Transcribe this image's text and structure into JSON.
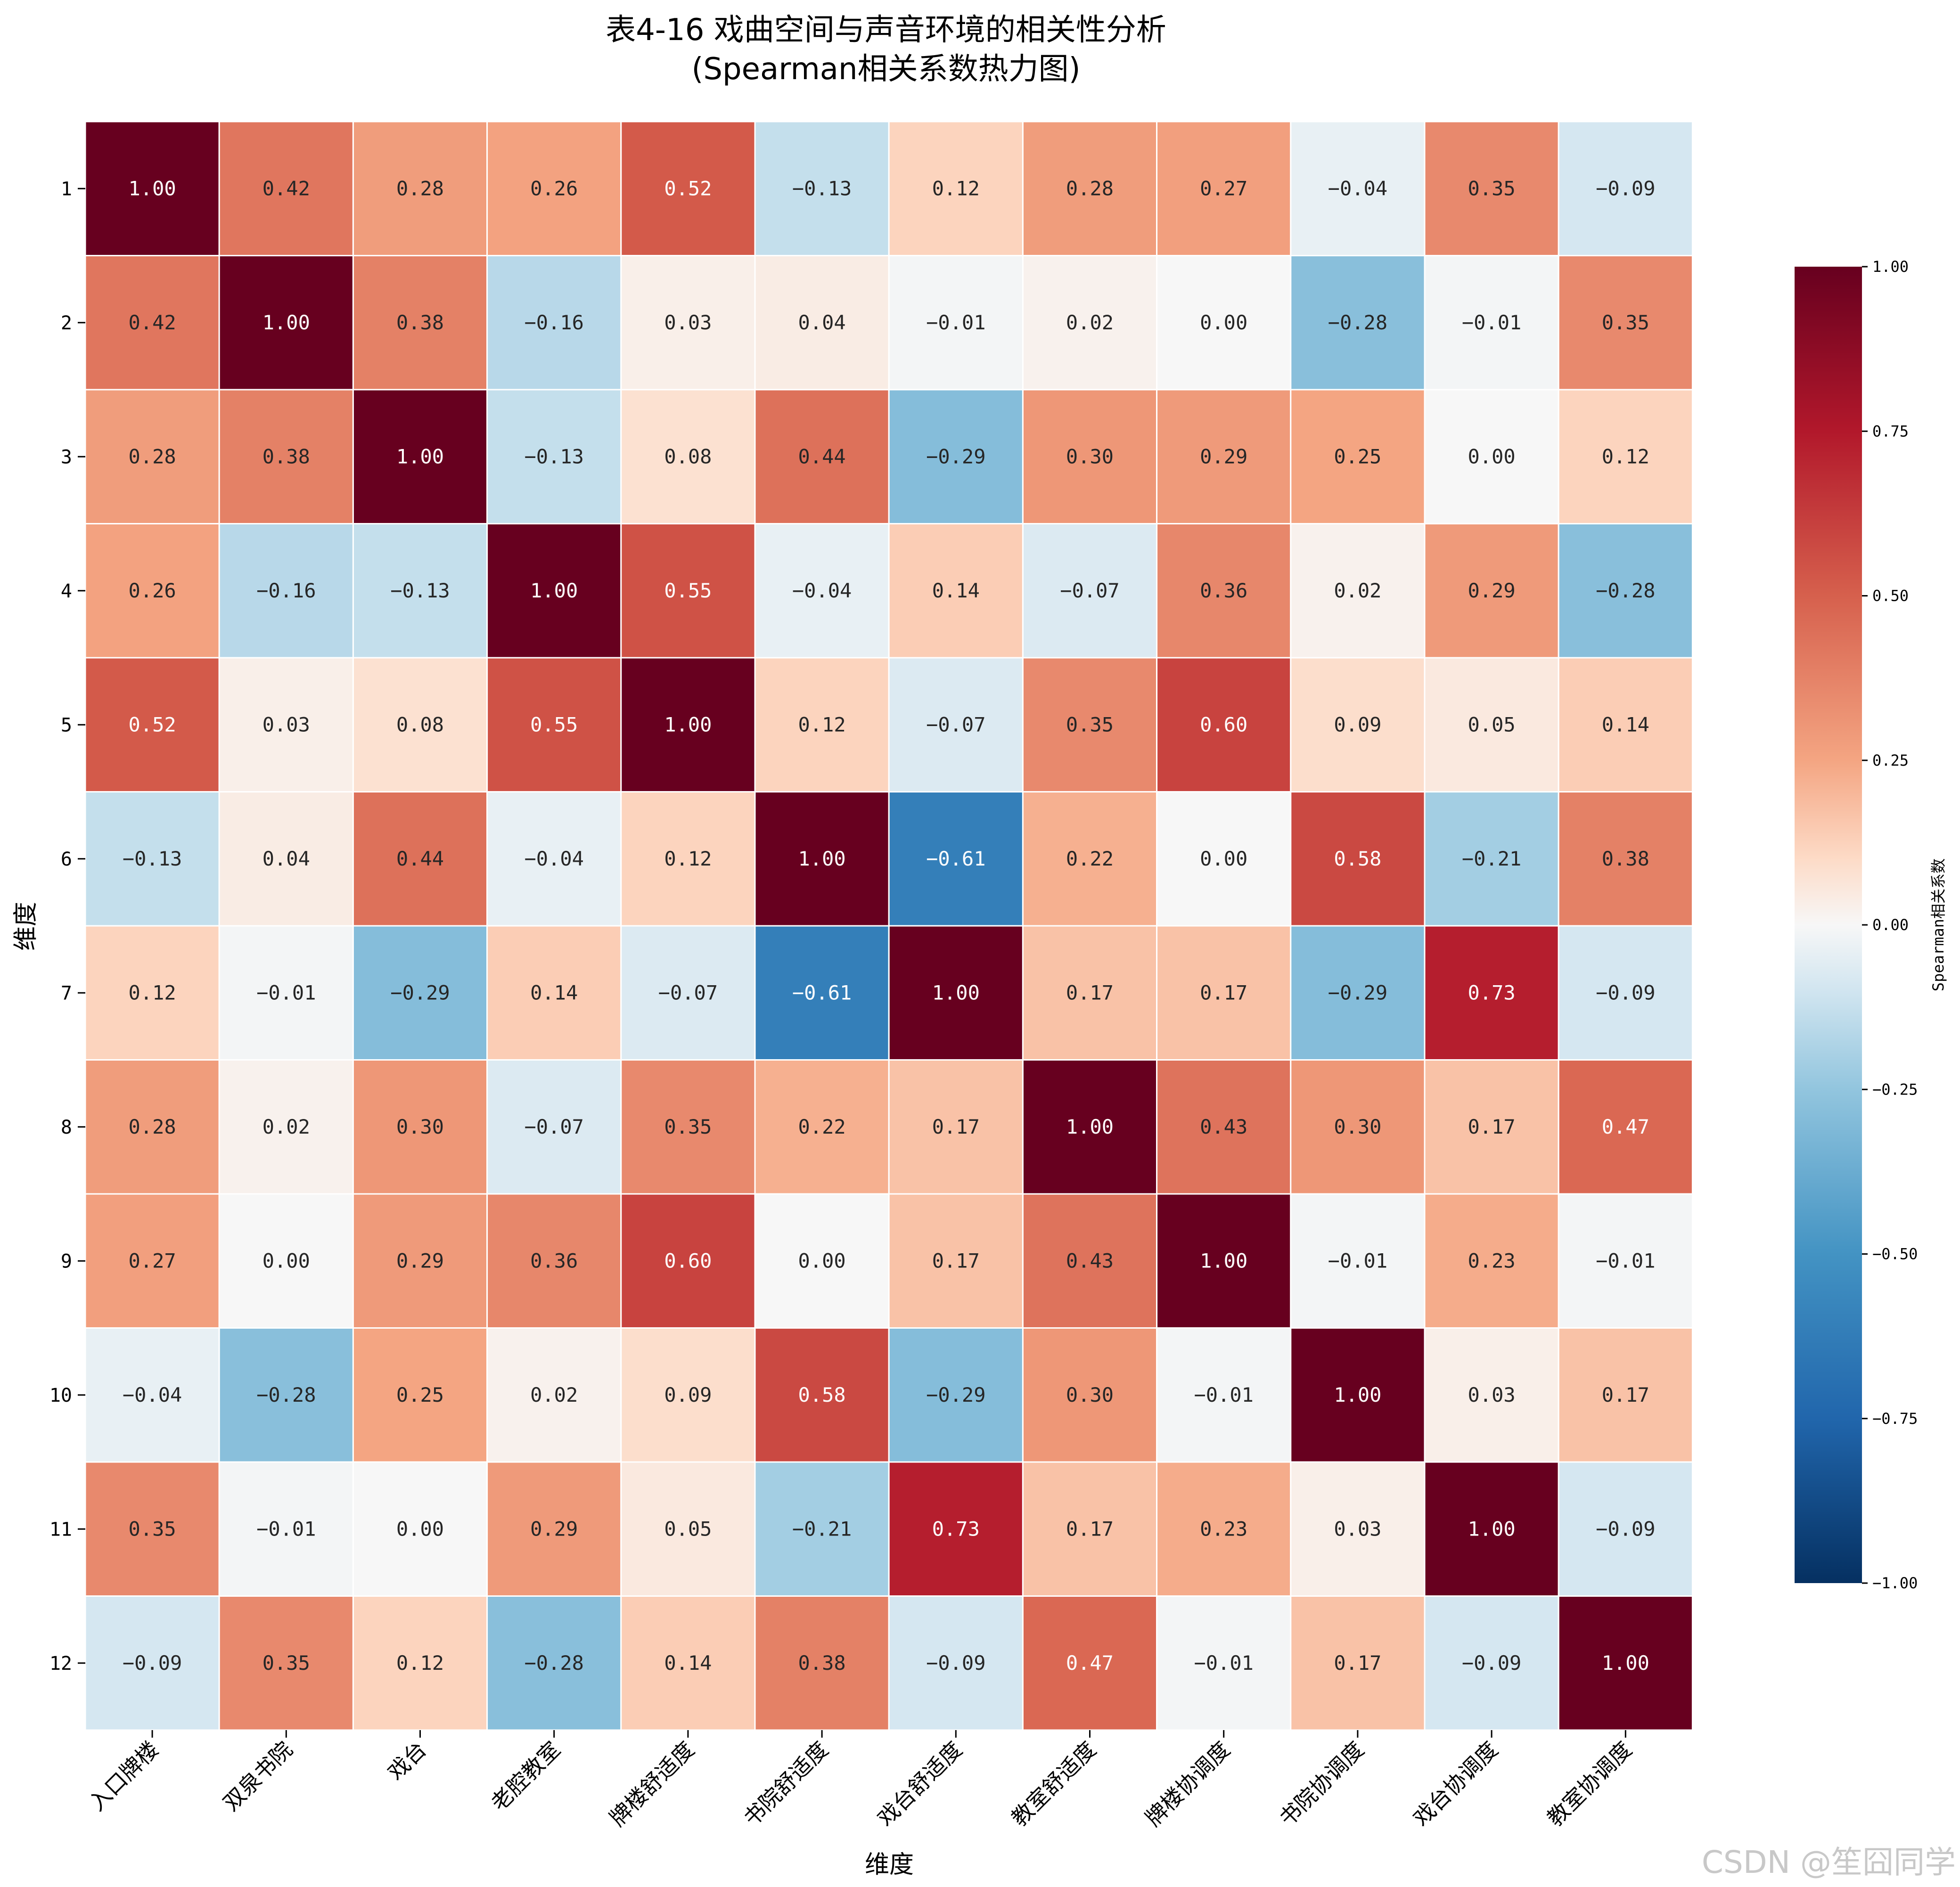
{
  "chart_data": {
    "type": "heatmap",
    "title_lines": [
      "表4-16 戏曲空间与声音环境的相关性分析",
      "(Spearman相关系数热力图)"
    ],
    "xlabel": "维度",
    "ylabel": "维度",
    "x_categories": [
      "入口牌楼",
      "双泉书院",
      "戏台",
      "老腔教室",
      "牌楼舒适度",
      "书院舒适度",
      "戏台舒适度",
      "教室舒适度",
      "牌楼协调度",
      "书院协调度",
      "戏台协调度",
      "教室协调度"
    ],
    "y_categories": [
      "1",
      "2",
      "3",
      "4",
      "5",
      "6",
      "7",
      "8",
      "9",
      "10",
      "11",
      "12"
    ],
    "values": [
      [
        1.0,
        0.42,
        0.28,
        0.26,
        0.52,
        -0.13,
        0.12,
        0.28,
        0.27,
        -0.04,
        0.35,
        -0.09
      ],
      [
        0.42,
        1.0,
        0.38,
        -0.16,
        0.03,
        0.04,
        -0.01,
        0.02,
        0.0,
        -0.28,
        -0.01,
        0.35
      ],
      [
        0.28,
        0.38,
        1.0,
        -0.13,
        0.08,
        0.44,
        -0.29,
        0.3,
        0.29,
        0.25,
        0.0,
        0.12
      ],
      [
        0.26,
        -0.16,
        -0.13,
        1.0,
        0.55,
        -0.04,
        0.14,
        -0.07,
        0.36,
        0.02,
        0.29,
        -0.28
      ],
      [
        0.52,
        0.03,
        0.08,
        0.55,
        1.0,
        0.12,
        -0.07,
        0.35,
        0.6,
        0.09,
        0.05,
        0.14
      ],
      [
        -0.13,
        0.04,
        0.44,
        -0.04,
        0.12,
        1.0,
        -0.61,
        0.22,
        0.0,
        0.58,
        -0.21,
        0.38
      ],
      [
        0.12,
        -0.01,
        -0.29,
        0.14,
        -0.07,
        -0.61,
        1.0,
        0.17,
        0.17,
        -0.29,
        0.73,
        -0.09
      ],
      [
        0.28,
        0.02,
        0.3,
        -0.07,
        0.35,
        0.22,
        0.17,
        1.0,
        0.43,
        0.3,
        0.17,
        0.47
      ],
      [
        0.27,
        0.0,
        0.29,
        0.36,
        0.6,
        0.0,
        0.17,
        0.43,
        1.0,
        -0.01,
        0.23,
        -0.01
      ],
      [
        -0.04,
        -0.28,
        0.25,
        0.02,
        0.09,
        0.58,
        -0.29,
        0.3,
        -0.01,
        1.0,
        0.03,
        0.17
      ],
      [
        0.35,
        -0.01,
        0.0,
        0.29,
        0.05,
        -0.21,
        0.73,
        0.17,
        0.23,
        0.03,
        1.0,
        -0.09
      ],
      [
        -0.09,
        0.35,
        0.12,
        -0.28,
        0.14,
        0.38,
        -0.09,
        0.47,
        -0.01,
        0.17,
        -0.09,
        1.0
      ]
    ],
    "value_range": [
      -1.0,
      1.0
    ],
    "colormap": "RdBu_r",
    "colorbar": {
      "label": "Spearman相关系数",
      "ticks": [
        1.0,
        0.75,
        0.5,
        0.25,
        0.0,
        -0.25,
        -0.5,
        -0.75,
        -1.0
      ],
      "tick_labels": [
        "1.00",
        "0.75",
        "0.50",
        "0.25",
        "0.00",
        "−0.25",
        "−0.50",
        "−0.75",
        "−1.00"
      ]
    },
    "grid": false,
    "legend": "colorbar-right"
  },
  "watermark": "CSDN @笙囧同学"
}
